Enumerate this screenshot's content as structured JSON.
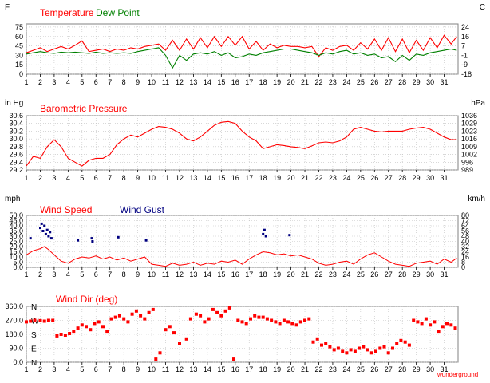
{
  "page": {
    "credit": "wunderground"
  },
  "chart_data": [
    {
      "id": "temperature",
      "type": "line",
      "left_unit": "F",
      "right_unit": "C",
      "legend": [
        {
          "name": "Temperature",
          "color": "#ff0000"
        },
        {
          "name": "Dew Point",
          "color": "#008000"
        }
      ],
      "ylim": [
        0,
        80
      ],
      "left_ticks": [
        "75",
        "60",
        "45",
        "30",
        "15",
        "0"
      ],
      "left_tick_values": [
        75,
        60,
        45,
        30,
        15,
        0
      ],
      "right_ticks": [
        "24",
        "16",
        "7",
        "-1",
        "-9",
        "-18"
      ],
      "right_tick_values": [
        75,
        60,
        45,
        30,
        15,
        0
      ],
      "x_ticks": [
        "1",
        "2",
        "3",
        "4",
        "5",
        "6",
        "7",
        "8",
        "9",
        "10",
        "11",
        "12",
        "13",
        "14",
        "15",
        "16",
        "17",
        "18",
        "19",
        "20",
        "21",
        "22",
        "23",
        "24",
        "25",
        "26",
        "27",
        "28",
        "29",
        "30",
        "31"
      ],
      "xlim": [
        1,
        32
      ],
      "series": [
        {
          "name": "Temperature",
          "color": "#ff0000",
          "x": [
            1,
            1.5,
            2,
            2.5,
            3,
            3.5,
            4,
            4.5,
            5,
            5.5,
            6,
            6.5,
            7,
            7.5,
            8,
            8.5,
            9,
            9.5,
            10,
            10.5,
            11,
            11.5,
            12,
            12.5,
            13,
            13.5,
            14,
            14.5,
            15,
            15.5,
            16,
            16.5,
            17,
            17.5,
            18,
            18.5,
            19,
            19.5,
            20,
            20.5,
            21,
            21.5,
            22,
            22.5,
            23,
            23.5,
            24,
            24.5,
            25,
            25.5,
            26,
            26.5,
            27,
            27.5,
            28,
            28.5,
            29,
            29.5,
            30,
            30.5,
            31,
            31.5,
            31.9
          ],
          "y": [
            34,
            38,
            42,
            36,
            40,
            44,
            40,
            46,
            53,
            36,
            38,
            40,
            36,
            40,
            38,
            42,
            40,
            44,
            46,
            48,
            38,
            54,
            38,
            56,
            40,
            58,
            42,
            60,
            44,
            60,
            46,
            60,
            40,
            52,
            38,
            48,
            42,
            46,
            44,
            44,
            42,
            44,
            28,
            42,
            38,
            44,
            46,
            38,
            50,
            40,
            56,
            38,
            58,
            36,
            56,
            34,
            54,
            38,
            58,
            42,
            62,
            48,
            60
          ]
        },
        {
          "name": "Dew Point",
          "color": "#008000",
          "x": [
            1,
            1.5,
            2,
            2.5,
            3,
            3.5,
            4,
            4.5,
            5,
            5.5,
            6,
            6.5,
            7,
            7.5,
            8,
            8.5,
            9,
            9.5,
            10,
            10.5,
            11,
            11.5,
            12,
            12.5,
            13,
            13.5,
            14,
            14.5,
            15,
            15.5,
            16,
            16.5,
            17,
            17.5,
            18,
            18.5,
            19,
            19.5,
            20,
            20.5,
            21,
            21.5,
            22,
            22.5,
            23,
            23.5,
            24,
            24.5,
            25,
            25.5,
            26,
            26.5,
            27,
            27.5,
            28,
            28.5,
            29,
            29.5,
            30,
            30.5,
            31,
            31.5,
            31.9
          ],
          "y": [
            32,
            34,
            36,
            34,
            33,
            35,
            34,
            35,
            34,
            33,
            35,
            33,
            34,
            33,
            34,
            33,
            36,
            38,
            40,
            42,
            30,
            10,
            30,
            22,
            32,
            34,
            32,
            36,
            30,
            34,
            26,
            28,
            32,
            30,
            34,
            36,
            38,
            40,
            40,
            38,
            36,
            34,
            30,
            34,
            32,
            36,
            38,
            32,
            34,
            30,
            32,
            26,
            28,
            20,
            30,
            22,
            32,
            30,
            34,
            36,
            38,
            40,
            38
          ]
        }
      ]
    },
    {
      "id": "pressure",
      "type": "line",
      "title": "Barometric Pressure",
      "left_unit": "in Hg",
      "right_unit": "hPa",
      "ylim": [
        29.2,
        30.6
      ],
      "left_ticks": [
        "30.6",
        "30.4",
        "30.2",
        "30.0",
        "29.8",
        "29.6",
        "29.4",
        "29.2"
      ],
      "left_tick_values": [
        30.6,
        30.4,
        30.2,
        30.0,
        29.8,
        29.6,
        29.4,
        29.2
      ],
      "right_ticks": [
        "1036",
        "1029",
        "1023",
        "1016",
        "1009",
        "1002",
        "996",
        "989"
      ],
      "right_tick_values": [
        30.6,
        30.4,
        30.2,
        30.0,
        29.8,
        29.6,
        29.4,
        29.2
      ],
      "x_ticks": [
        "1",
        "2",
        "3",
        "4",
        "5",
        "6",
        "7",
        "8",
        "9",
        "10",
        "11",
        "12",
        "13",
        "14",
        "15",
        "16",
        "17",
        "18",
        "19",
        "20",
        "21",
        "22",
        "23",
        "24",
        "25",
        "26",
        "27",
        "28",
        "29",
        "30",
        "31"
      ],
      "xlim": [
        1,
        32
      ],
      "series": [
        {
          "name": "Barometric Pressure",
          "color": "#ff0000",
          "x": [
            1,
            1.5,
            2,
            2.5,
            3,
            3.5,
            4,
            4.5,
            5,
            5.5,
            6,
            6.5,
            7,
            7.5,
            8,
            8.5,
            9,
            9.5,
            10,
            10.5,
            11,
            11.5,
            12,
            12.5,
            13,
            13.5,
            14,
            14.5,
            15,
            15.5,
            16,
            16.5,
            17,
            17.5,
            18,
            18.5,
            19,
            19.5,
            20,
            20.5,
            21,
            21.5,
            22,
            22.5,
            23,
            23.5,
            24,
            24.5,
            25,
            25.5,
            26,
            26.5,
            27,
            27.5,
            28,
            28.5,
            29,
            29.5,
            30,
            30.5,
            31,
            31.5,
            31.9
          ],
          "y": [
            29.3,
            29.55,
            29.5,
            29.8,
            29.98,
            29.8,
            29.5,
            29.4,
            29.3,
            29.45,
            29.5,
            29.5,
            29.6,
            29.85,
            30.0,
            30.1,
            30.05,
            30.15,
            30.25,
            30.32,
            30.3,
            30.25,
            30.15,
            30.0,
            29.95,
            30.05,
            30.2,
            30.35,
            30.43,
            30.45,
            30.4,
            30.2,
            30.05,
            29.95,
            29.75,
            29.8,
            29.85,
            29.83,
            29.8,
            29.78,
            29.75,
            29.82,
            29.9,
            29.92,
            29.9,
            29.95,
            30.05,
            30.25,
            30.3,
            30.25,
            30.2,
            30.18,
            30.2,
            30.2,
            30.2,
            30.25,
            30.28,
            30.3,
            30.25,
            30.15,
            30.05,
            29.98,
            29.98
          ]
        }
      ]
    },
    {
      "id": "wind",
      "type": "scatter",
      "left_unit": "mph",
      "right_unit": "km/h",
      "legend": [
        {
          "name": "Wind Speed",
          "color": "#ff0000"
        },
        {
          "name": "Wind Gust",
          "color": "#000080"
        }
      ],
      "ylim": [
        0,
        50
      ],
      "left_ticks": [
        "50.0",
        "45.0",
        "40.0",
        "35.0",
        "30.0",
        "25.0",
        "20.0",
        "15.0",
        "10.0",
        "5.0",
        "0.0"
      ],
      "left_tick_values": [
        50,
        45,
        40,
        35,
        30,
        25,
        20,
        15,
        10,
        5,
        0
      ],
      "right_ticks": [
        "80",
        "72",
        "64",
        "56",
        "48",
        "40",
        "32",
        "24",
        "16",
        "8",
        "0"
      ],
      "right_tick_values": [
        50,
        45,
        40,
        35,
        30,
        25,
        20,
        15,
        10,
        5,
        0
      ],
      "x_ticks": [
        "1",
        "2",
        "3",
        "4",
        "5",
        "6",
        "7",
        "8",
        "9",
        "10",
        "11",
        "12",
        "13",
        "14",
        "15",
        "16",
        "17",
        "18",
        "19",
        "20",
        "21",
        "22",
        "23",
        "24",
        "25",
        "26",
        "27",
        "28",
        "29",
        "30",
        "31"
      ],
      "xlim": [
        1,
        32
      ],
      "series": [
        {
          "name": "Wind Speed",
          "color": "#ff0000",
          "x": [
            1,
            1.5,
            2,
            2.3,
            2.6,
            3,
            3.5,
            4,
            4.5,
            5,
            5.5,
            6,
            6.5,
            7,
            7.5,
            8,
            8.5,
            9,
            9.5,
            10,
            10.5,
            11,
            11.5,
            12,
            12.5,
            13,
            13.5,
            14,
            14.5,
            15,
            15.5,
            16,
            16.5,
            17,
            17.5,
            18,
            18.5,
            19,
            19.5,
            20,
            20.5,
            21,
            21.5,
            22,
            22.5,
            23,
            23.5,
            24,
            24.5,
            25,
            25.5,
            26,
            26.5,
            27,
            27.5,
            28,
            28.5,
            29,
            29.5,
            30,
            30.5,
            31,
            31.5,
            31.9
          ],
          "y": [
            12,
            16,
            18,
            20,
            17,
            12,
            6,
            4,
            8,
            10,
            9,
            11,
            8,
            10,
            7,
            9,
            6,
            8,
            10,
            3,
            2,
            1,
            4,
            2,
            3,
            5,
            2,
            4,
            3,
            6,
            5,
            7,
            3,
            8,
            12,
            15,
            14,
            12,
            13,
            11,
            12,
            10,
            8,
            4,
            2,
            3,
            5,
            6,
            3,
            8,
            12,
            14,
            10,
            6,
            3,
            2,
            1,
            4,
            5,
            6,
            3,
            8,
            5,
            9
          ]
        },
        {
          "name": "Wind Gust",
          "color": "#000080",
          "x": [
            1.3,
            2,
            2.1,
            2.2,
            2.3,
            2.4,
            2.5,
            2.6,
            2.7,
            2.8,
            4.7,
            5.7,
            5.75,
            7.6,
            9.6,
            18,
            18.1,
            18.2,
            19.9
          ],
          "y": [
            28,
            38,
            42,
            35,
            40,
            32,
            36,
            30,
            34,
            28,
            26,
            28,
            25,
            29,
            26,
            32,
            36,
            30,
            31
          ]
        }
      ]
    },
    {
      "id": "wind_dir",
      "type": "scatter",
      "title": "Wind Dir (deg)",
      "ylim": [
        0,
        360
      ],
      "left_ticks": [
        "360.0",
        "270.0",
        "180.0",
        "90.0",
        "0.0"
      ],
      "left_tick_values": [
        360,
        270,
        180,
        90,
        0
      ],
      "compass_labels": [
        "N",
        "W",
        "S",
        "E",
        "N"
      ],
      "compass_values": [
        360,
        270,
        180,
        90,
        0
      ],
      "x_ticks": [
        "1",
        "2",
        "3",
        "4",
        "5",
        "6",
        "7",
        "8",
        "9",
        "10",
        "11",
        "12",
        "13",
        "14",
        "15",
        "16",
        "17",
        "18",
        "19",
        "20",
        "21",
        "22",
        "23",
        "24",
        "25",
        "26",
        "27",
        "28",
        "29",
        "30",
        "31"
      ],
      "xlim": [
        1,
        32
      ],
      "footnote": "wunderground",
      "series": [
        {
          "name": "Wind Dir",
          "color": "#ff0000",
          "x": [
            1,
            1.3,
            1.6,
            2,
            2.3,
            2.6,
            2.9,
            3.2,
            3.5,
            3.8,
            4.1,
            4.4,
            4.7,
            5,
            5.3,
            5.6,
            5.9,
            6.2,
            6.5,
            6.8,
            7.1,
            7.4,
            7.7,
            8,
            8.3,
            8.6,
            8.9,
            9.2,
            9.5,
            9.8,
            10.1,
            10.3,
            10.6,
            11,
            11.3,
            11.6,
            12,
            12.5,
            12.8,
            13.2,
            13.5,
            13.8,
            14.1,
            14.4,
            14.7,
            15,
            15.3,
            15.6,
            15.9,
            16.2,
            16.5,
            16.8,
            17.1,
            17.4,
            17.7,
            18,
            18.3,
            18.6,
            18.9,
            19.2,
            19.5,
            19.8,
            20.1,
            20.4,
            20.7,
            21,
            21.3,
            21.6,
            21.9,
            22.2,
            22.5,
            22.8,
            23.1,
            23.4,
            23.7,
            24,
            24.3,
            24.6,
            24.9,
            25.2,
            25.5,
            25.8,
            26.1,
            26.4,
            26.7,
            27,
            27.3,
            27.6,
            27.9,
            28.2,
            28.5,
            28.8,
            29.1,
            29.4,
            29.7,
            30,
            30.3,
            30.6,
            30.9,
            31.2,
            31.5,
            31.8
          ],
          "y": [
            260,
            265,
            270,
            268,
            265,
            270,
            270,
            170,
            180,
            175,
            185,
            200,
            220,
            240,
            230,
            210,
            250,
            260,
            230,
            200,
            280,
            290,
            300,
            280,
            260,
            310,
            330,
            300,
            280,
            320,
            340,
            20,
            60,
            210,
            230,
            190,
            120,
            150,
            280,
            310,
            300,
            260,
            280,
            340,
            320,
            300,
            330,
            350,
            20,
            270,
            260,
            250,
            280,
            300,
            290,
            290,
            280,
            270,
            260,
            250,
            270,
            260,
            250,
            240,
            260,
            270,
            280,
            130,
            150,
            110,
            120,
            100,
            80,
            90,
            70,
            60,
            80,
            70,
            90,
            100,
            80,
            60,
            70,
            90,
            100,
            60,
            90,
            120,
            140,
            130,
            110,
            270,
            260,
            250,
            280,
            240,
            260,
            200,
            230,
            250,
            240,
            220
          ]
        }
      ]
    }
  ]
}
